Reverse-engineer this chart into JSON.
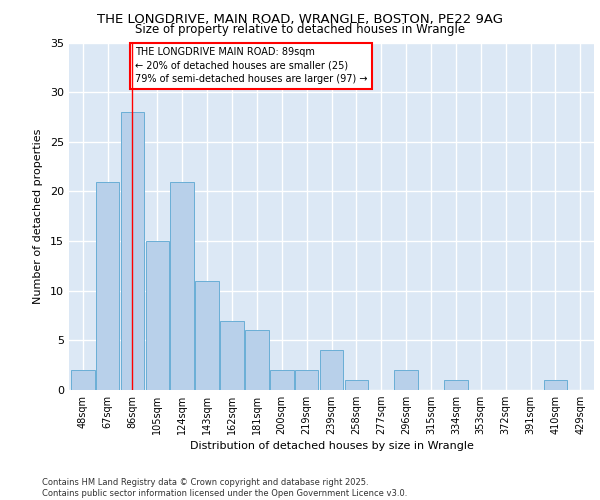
{
  "title_line1": "THE LONGDRIVE, MAIN ROAD, WRANGLE, BOSTON, PE22 9AG",
  "title_line2": "Size of property relative to detached houses in Wrangle",
  "xlabel": "Distribution of detached houses by size in Wrangle",
  "ylabel": "Number of detached properties",
  "categories": [
    "48sqm",
    "67sqm",
    "86sqm",
    "105sqm",
    "124sqm",
    "143sqm",
    "162sqm",
    "181sqm",
    "200sqm",
    "219sqm",
    "239sqm",
    "258sqm",
    "277sqm",
    "296sqm",
    "315sqm",
    "334sqm",
    "353sqm",
    "372sqm",
    "391sqm",
    "410sqm",
    "429sqm"
  ],
  "values": [
    2,
    21,
    28,
    15,
    21,
    11,
    7,
    6,
    2,
    2,
    4,
    1,
    0,
    2,
    0,
    1,
    0,
    0,
    0,
    1,
    0
  ],
  "bar_color": "#b8d0ea",
  "bar_edge_color": "#6aaed6",
  "vline_x": 2.0,
  "annotation_text": "THE LONGDRIVE MAIN ROAD: 89sqm\n← 20% of detached houses are smaller (25)\n79% of semi-detached houses are larger (97) →",
  "annotation_box_color": "white",
  "annotation_box_edge": "red",
  "vline_color": "red",
  "ylim": [
    0,
    35
  ],
  "yticks": [
    0,
    5,
    10,
    15,
    20,
    25,
    30,
    35
  ],
  "background_color": "#dce8f5",
  "grid_color": "white",
  "footer": "Contains HM Land Registry data © Crown copyright and database right 2025.\nContains public sector information licensed under the Open Government Licence v3.0."
}
